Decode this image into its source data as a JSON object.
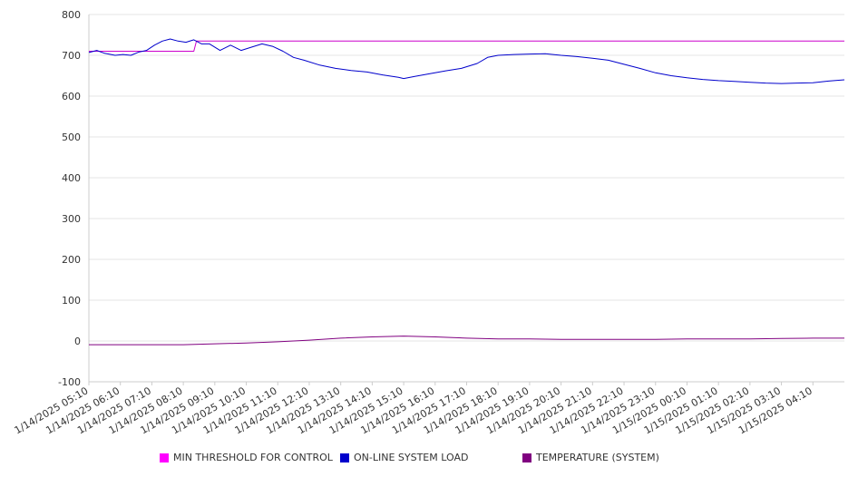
{
  "chart_data": {
    "type": "line",
    "ylim": [
      -100,
      800
    ],
    "yticks": [
      -100,
      0,
      100,
      200,
      300,
      400,
      500,
      600,
      700,
      800
    ],
    "grid": true,
    "legend_position": "bottom",
    "x_ticks": [
      "1/14/2025 05:10",
      "1/14/2025 06:10",
      "1/14/2025 07:10",
      "1/14/2025 08:10",
      "1/14/2025 09:10",
      "1/14/2025 10:10",
      "1/14/2025 11:10",
      "1/14/2025 12:10",
      "1/14/2025 13:10",
      "1/14/2025 14:10",
      "1/14/2025 15:10",
      "1/14/2025 16:10",
      "1/14/2025 17:10",
      "1/14/2025 18:10",
      "1/14/2025 19:10",
      "1/14/2025 20:10",
      "1/14/2025 21:10",
      "1/14/2025 22:10",
      "1/14/2025 23:10",
      "1/15/2025 00:10",
      "1/15/2025 01:10",
      "1/15/2025 02:10",
      "1/15/2025 03:10",
      "1/15/2025 04:10"
    ],
    "series": [
      {
        "name": "MIN THRESHOLD FOR CONTROL",
        "color": "#cc00cc",
        "x": [
          "1/14/2025 05:10",
          "1/14/2025 08:30",
          "1/14/2025 08:35",
          "1/15/2025 05:10"
        ],
        "values": [
          710,
          710,
          735,
          735
        ]
      },
      {
        "name": "ON-LINE SYSTEM LOAD",
        "color": "#0000cc",
        "x": [
          "1/14/2025 05:10",
          "1/14/2025 05:25",
          "1/14/2025 05:40",
          "1/14/2025 06:00",
          "1/14/2025 06:15",
          "1/14/2025 06:30",
          "1/14/2025 06:45",
          "1/14/2025 07:00",
          "1/14/2025 07:15",
          "1/14/2025 07:30",
          "1/14/2025 07:45",
          "1/14/2025 08:00",
          "1/14/2025 08:15",
          "1/14/2025 08:30",
          "1/14/2025 08:45",
          "1/14/2025 09:00",
          "1/14/2025 09:20",
          "1/14/2025 09:40",
          "1/14/2025 10:00",
          "1/14/2025 10:20",
          "1/14/2025 10:40",
          "1/14/2025 11:00",
          "1/14/2025 11:20",
          "1/14/2025 11:40",
          "1/14/2025 12:00",
          "1/14/2025 12:30",
          "1/14/2025 13:00",
          "1/14/2025 13:30",
          "1/14/2025 14:00",
          "1/14/2025 14:30",
          "1/14/2025 15:00",
          "1/14/2025 15:10",
          "1/14/2025 15:30",
          "1/14/2025 16:00",
          "1/14/2025 16:30",
          "1/14/2025 17:00",
          "1/14/2025 17:30",
          "1/14/2025 17:50",
          "1/14/2025 18:10",
          "1/14/2025 18:40",
          "1/14/2025 19:10",
          "1/14/2025 19:40",
          "1/14/2025 20:10",
          "1/14/2025 20:40",
          "1/14/2025 21:10",
          "1/14/2025 21:40",
          "1/14/2025 22:10",
          "1/14/2025 22:40",
          "1/14/2025 23:10",
          "1/14/2025 23:40",
          "1/15/2025 00:10",
          "1/15/2025 00:40",
          "1/15/2025 01:10",
          "1/15/2025 01:40",
          "1/15/2025 02:10",
          "1/15/2025 02:40",
          "1/15/2025 03:10",
          "1/15/2025 03:40",
          "1/15/2025 04:10",
          "1/15/2025 04:40",
          "1/15/2025 05:10"
        ],
        "values": [
          707,
          712,
          705,
          700,
          702,
          700,
          708,
          712,
          725,
          735,
          740,
          735,
          732,
          738,
          728,
          728,
          712,
          725,
          712,
          720,
          728,
          722,
          710,
          695,
          688,
          676,
          668,
          663,
          659,
          652,
          646,
          643,
          648,
          655,
          662,
          668,
          680,
          695,
          700,
          702,
          703,
          704,
          700,
          697,
          693,
          688,
          678,
          668,
          657,
          650,
          645,
          641,
          638,
          636,
          634,
          632,
          631,
          632,
          633,
          637,
          640
        ]
      },
      {
        "name": "TEMPERATURE (SYSTEM)",
        "color": "#800080",
        "x": [
          "1/14/2025 05:10",
          "1/14/2025 06:10",
          "1/14/2025 07:10",
          "1/14/2025 08:10",
          "1/14/2025 09:10",
          "1/14/2025 10:10",
          "1/14/2025 11:10",
          "1/14/2025 12:10",
          "1/14/2025 13:10",
          "1/14/2025 14:10",
          "1/14/2025 15:10",
          "1/14/2025 16:10",
          "1/14/2025 17:10",
          "1/14/2025 18:10",
          "1/14/2025 19:10",
          "1/14/2025 20:10",
          "1/14/2025 21:10",
          "1/14/2025 22:10",
          "1/14/2025 23:10",
          "1/15/2025 00:10",
          "1/15/2025 01:10",
          "1/15/2025 02:10",
          "1/15/2025 03:10",
          "1/15/2025 04:10",
          "1/15/2025 05:10"
        ],
        "values": [
          -9,
          -9,
          -9,
          -9,
          -7,
          -5,
          -2,
          2,
          7,
          10,
          12,
          10,
          7,
          5,
          5,
          4,
          4,
          4,
          4,
          5,
          5,
          5,
          6,
          7,
          7
        ]
      }
    ]
  },
  "legend": {
    "items": [
      {
        "label": "MIN THRESHOLD FOR CONTROL",
        "color": "#ff00ff"
      },
      {
        "label": "ON-LINE SYSTEM LOAD",
        "color": "#0000cc"
      },
      {
        "label": "TEMPERATURE (SYSTEM)",
        "color": "#800080"
      }
    ]
  }
}
